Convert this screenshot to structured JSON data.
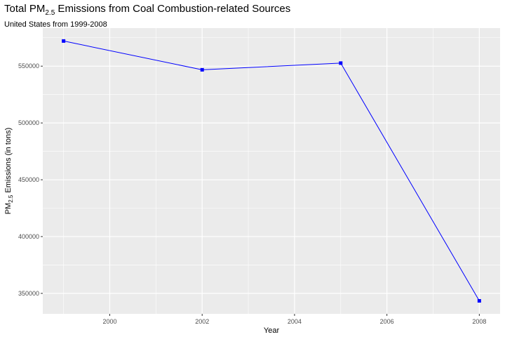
{
  "chart_data": {
    "type": "line",
    "title_prefix": "Total PM",
    "title_subscript": "2.5",
    "title_suffix": " Emissions from Coal Combustion-related Sources",
    "subtitle": "United States from 1999-2008",
    "xlabel": "Year",
    "ylabel_prefix": "PM",
    "ylabel_subscript": "2.5",
    "ylabel_suffix": " Emissions (in tons)",
    "x": [
      1999,
      2002,
      2005,
      2008
    ],
    "series": [
      {
        "values": [
          572126,
          546789,
          552675,
          343432
        ]
      }
    ],
    "xlim": [
      1998.55,
      2008.45
    ],
    "ylim": [
      332000,
      583500
    ],
    "xticks": [
      2000,
      2002,
      2004,
      2006,
      2008
    ],
    "xtick_labels": [
      "2000",
      "2002",
      "2004",
      "2006",
      "2008"
    ],
    "yticks": [
      350000,
      400000,
      450000,
      500000,
      550000
    ],
    "ytick_labels": [
      "350000",
      "400000",
      "450000",
      "500000",
      "550000"
    ],
    "grid": true,
    "colors": {
      "line": "#0000ff",
      "point": "#0000ff",
      "panel": "#ebebeb",
      "grid": "#ffffff"
    }
  }
}
